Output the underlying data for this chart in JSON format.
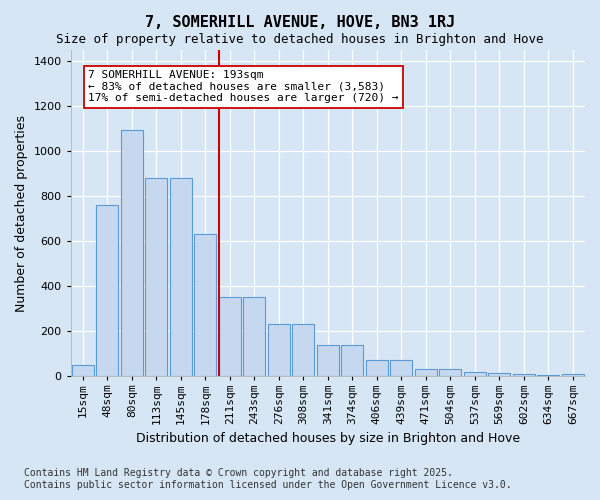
{
  "title": "7, SOMERHILL AVENUE, HOVE, BN3 1RJ",
  "subtitle": "Size of property relative to detached houses in Brighton and Hove",
  "xlabel": "Distribution of detached houses by size in Brighton and Hove",
  "ylabel": "Number of detached properties",
  "footer_line1": "Contains HM Land Registry data © Crown copyright and database right 2025.",
  "footer_line2": "Contains public sector information licensed under the Open Government Licence v3.0.",
  "categories": [
    "15sqm",
    "48sqm",
    "80sqm",
    "113sqm",
    "145sqm",
    "178sqm",
    "211sqm",
    "243sqm",
    "276sqm",
    "308sqm",
    "341sqm",
    "374sqm",
    "406sqm",
    "439sqm",
    "471sqm",
    "504sqm",
    "537sqm",
    "569sqm",
    "602sqm",
    "634sqm",
    "667sqm"
  ],
  "values": [
    50,
    760,
    1095,
    880,
    880,
    630,
    350,
    350,
    230,
    230,
    140,
    140,
    70,
    70,
    30,
    30,
    20,
    15,
    10,
    5,
    10
  ],
  "bar_color": "#c5d8ef",
  "bar_edge_color": "#5b9bd5",
  "vline_color": "#cc0000",
  "annotation_line1": "7 SOMERHILL AVENUE: 193sqm",
  "annotation_line2": "← 83% of detached houses are smaller (3,583)",
  "annotation_line3": "17% of semi-detached houses are larger (720) →",
  "annotation_box_color": "#ffffff",
  "annotation_box_edge": "#cc0000",
  "background_color": "#d6e6f5",
  "ylim_max": 1450,
  "yticks": [
    0,
    200,
    400,
    600,
    800,
    1000,
    1200,
    1400
  ],
  "vline_bin_index": 6,
  "title_fontsize": 11,
  "subtitle_fontsize": 9,
  "ylabel_fontsize": 9,
  "xlabel_fontsize": 9,
  "tick_fontsize": 8,
  "annot_fontsize": 8,
  "footer_fontsize": 7
}
